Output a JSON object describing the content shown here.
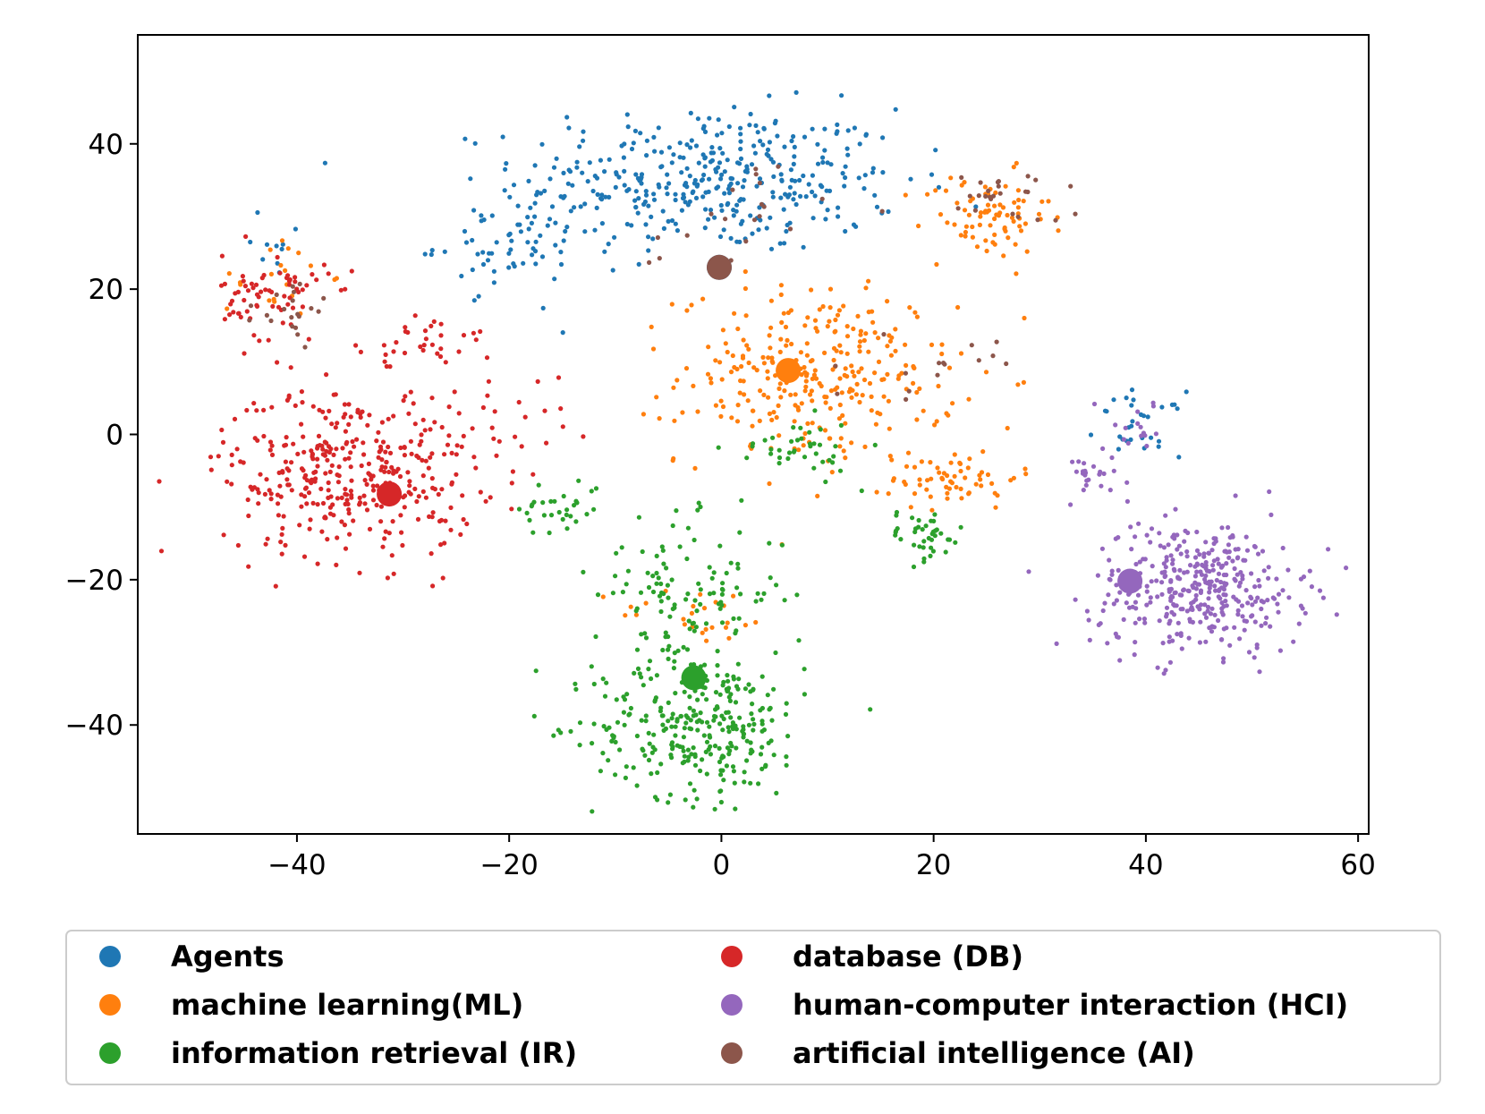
{
  "chart_data": {
    "type": "scatter",
    "title": "",
    "xlabel": "",
    "ylabel": "",
    "xlim": [
      -55,
      61
    ],
    "ylim": [
      -55,
      55
    ],
    "xticks": [
      -40,
      -20,
      0,
      20,
      40,
      60
    ],
    "yticks": [
      -40,
      -20,
      0,
      20,
      40
    ],
    "xtick_labels": [
      "−40",
      "−20",
      "0",
      "20",
      "40",
      "60"
    ],
    "ytick_labels": [
      "−40",
      "−20",
      "0",
      "20",
      "40"
    ],
    "grid": false,
    "legend_position": "bottom-center",
    "legend_columns": 2,
    "series": [
      {
        "name": "Agents",
        "color": "#1f77b4",
        "centroid": [
          -0.2,
          23.0
        ],
        "clusters": [
          {
            "cx": -1.0,
            "cy": 35.0,
            "sx": 9.0,
            "sy": 5.0,
            "n": 380
          },
          {
            "cx": -20.0,
            "cy": 26.0,
            "sx": 3.5,
            "sy": 3.0,
            "n": 60
          },
          {
            "cx": 39.5,
            "cy": 1.5,
            "sx": 2.0,
            "sy": 2.2,
            "n": 30
          },
          {
            "cx": -42.0,
            "cy": 25.0,
            "sx": 2.5,
            "sy": 3.0,
            "n": 10
          }
        ]
      },
      {
        "name": "machine learning(ML)",
        "color": "#ff7f0e",
        "centroid": [
          6.3,
          8.8
        ],
        "clusters": [
          {
            "cx": 9.0,
            "cy": 8.0,
            "sx": 6.5,
            "sy": 6.0,
            "n": 300
          },
          {
            "cx": 25.0,
            "cy": 30.0,
            "sx": 3.0,
            "sy": 3.0,
            "n": 80
          },
          {
            "cx": 22.0,
            "cy": -6.0,
            "sx": 3.0,
            "sy": 2.0,
            "n": 60
          },
          {
            "cx": -2.0,
            "cy": -25.0,
            "sx": 4.0,
            "sy": 2.0,
            "n": 25
          },
          {
            "cx": -42.0,
            "cy": 22.0,
            "sx": 2.5,
            "sy": 3.0,
            "n": 20
          }
        ]
      },
      {
        "name": "information retrieval (IR)",
        "color": "#2ca02c",
        "centroid": [
          -2.6,
          -33.5
        ],
        "clusters": [
          {
            "cx": -2.0,
            "cy": -40.0,
            "sx": 5.0,
            "sy": 5.0,
            "n": 300
          },
          {
            "cx": -3.0,
            "cy": -22.0,
            "sx": 4.5,
            "sy": 5.0,
            "n": 120
          },
          {
            "cx": 19.0,
            "cy": -14.0,
            "sx": 2.0,
            "sy": 1.8,
            "n": 40
          },
          {
            "cx": -15.0,
            "cy": -10.0,
            "sx": 2.0,
            "sy": 2.0,
            "n": 30
          },
          {
            "cx": 7.0,
            "cy": -2.0,
            "sx": 3.0,
            "sy": 2.0,
            "n": 40
          }
        ]
      },
      {
        "name": "database (DB)",
        "color": "#d62728",
        "centroid": [
          -31.3,
          -8.2
        ],
        "clusters": [
          {
            "cx": -35.0,
            "cy": -5.0,
            "sx": 6.0,
            "sy": 6.0,
            "n": 380
          },
          {
            "cx": -42.0,
            "cy": 19.0,
            "sx": 2.5,
            "sy": 3.0,
            "n": 70
          },
          {
            "cx": -27.0,
            "cy": 13.0,
            "sx": 3.0,
            "sy": 2.0,
            "n": 30
          },
          {
            "cx": -20.0,
            "cy": 2.0,
            "sx": 3.0,
            "sy": 3.0,
            "n": 20
          }
        ]
      },
      {
        "name": "human-computer interaction (HCI)",
        "color": "#9467bd",
        "centroid": [
          38.5,
          -20.2
        ],
        "clusters": [
          {
            "cx": 45.0,
            "cy": -21.0,
            "sx": 5.0,
            "sy": 4.5,
            "n": 380
          },
          {
            "cx": 35.0,
            "cy": -6.0,
            "sx": 3.0,
            "sy": 2.0,
            "n": 25
          },
          {
            "cx": 39.5,
            "cy": 1.0,
            "sx": 2.0,
            "sy": 2.0,
            "n": 15
          }
        ]
      },
      {
        "name": "artificial intelligence (AI)",
        "color": "#8c564b",
        "centroid": [
          -0.2,
          23.0
        ],
        "clusters": [
          {
            "cx": 27.0,
            "cy": 33.0,
            "sx": 2.5,
            "sy": 2.0,
            "n": 25
          },
          {
            "cx": -40.0,
            "cy": 17.0,
            "sx": 2.0,
            "sy": 2.0,
            "n": 20
          },
          {
            "cx": 20.0,
            "cy": 9.0,
            "sx": 3.0,
            "sy": 2.0,
            "n": 15
          },
          {
            "cx": 0.0,
            "cy": 30.0,
            "sx": 5.0,
            "sy": 4.0,
            "n": 20
          }
        ]
      }
    ]
  }
}
